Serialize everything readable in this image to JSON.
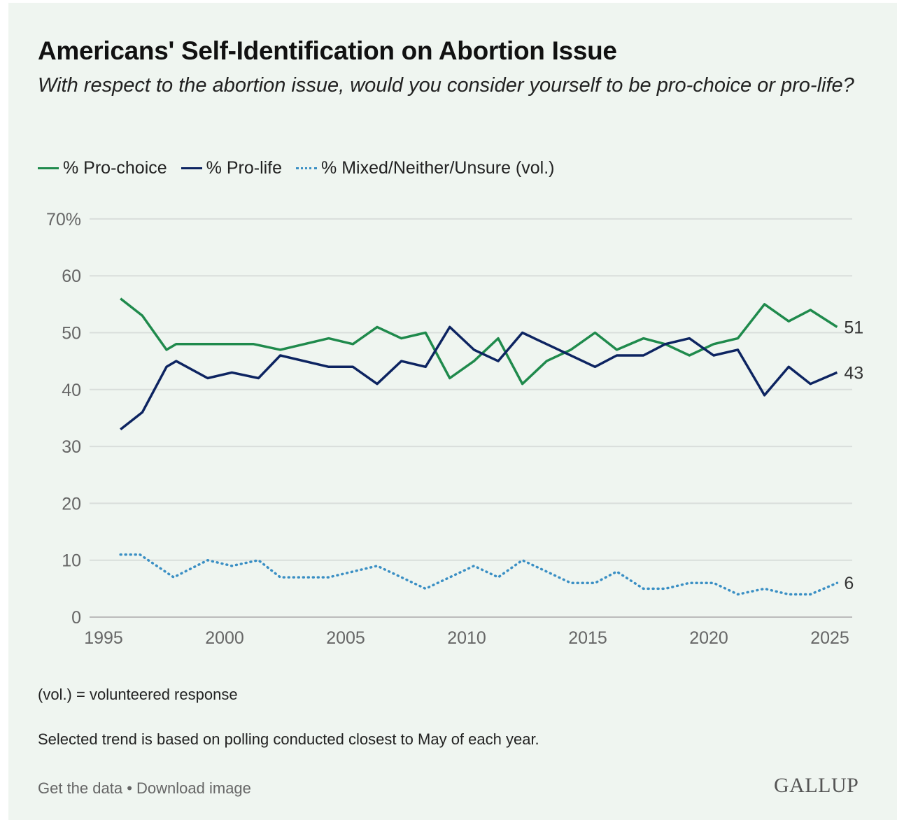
{
  "header": {
    "title": "Americans' Self-Identification on Abortion Issue",
    "subtitle": "With respect to the abortion issue, would you consider yourself to be pro-choice or pro-life?"
  },
  "notes": [
    "(vol.) = volunteered response",
    "Selected trend is based on polling conducted closest to May of each year."
  ],
  "footer": {
    "get_data": "Get the data",
    "separator": " • ",
    "download": "Download image",
    "logo": "GALLUP"
  },
  "colors": {
    "pro_choice": "#1f8a4c",
    "pro_life": "#0d2461",
    "mixed": "#3a8fc4"
  },
  "chart_data": {
    "type": "line",
    "title": "Americans' Self-Identification on Abortion Issue",
    "xlabel": "",
    "ylabel": "",
    "xlim": [
      1995,
      2025.5
    ],
    "ylim": [
      0,
      70
    ],
    "x_ticks": [
      "1995",
      "2000",
      "2005",
      "2010",
      "2015",
      "2020",
      "2025"
    ],
    "y_ticks": [
      "0",
      "10",
      "20",
      "30",
      "40",
      "50",
      "60",
      "70%"
    ],
    "grid": true,
    "legend": "top-left",
    "series": [
      {
        "name": "% Pro-choice",
        "style": "solid",
        "end_label": "51",
        "points": [
          [
            1995.7,
            56
          ],
          [
            1996.6,
            53
          ],
          [
            1997.6,
            47
          ],
          [
            1998.0,
            48
          ],
          [
            1999.4,
            48
          ],
          [
            2001.2,
            48
          ],
          [
            2002.3,
            47
          ],
          [
            2004.3,
            49
          ],
          [
            2005.3,
            48
          ],
          [
            2006.3,
            51
          ],
          [
            2007.3,
            49
          ],
          [
            2008.3,
            50
          ],
          [
            2009.3,
            42
          ],
          [
            2010.3,
            45
          ],
          [
            2011.3,
            49
          ],
          [
            2012.3,
            41
          ],
          [
            2013.3,
            45
          ],
          [
            2014.3,
            47
          ],
          [
            2015.3,
            50
          ],
          [
            2016.2,
            47
          ],
          [
            2017.3,
            49
          ],
          [
            2018.2,
            48
          ],
          [
            2019.2,
            46
          ],
          [
            2020.2,
            48
          ],
          [
            2021.2,
            49
          ],
          [
            2022.3,
            55
          ],
          [
            2023.3,
            52
          ],
          [
            2024.2,
            54
          ],
          [
            2025.3,
            51
          ]
        ]
      },
      {
        "name": "% Pro-life",
        "style": "solid",
        "end_label": "43",
        "points": [
          [
            1995.7,
            33
          ],
          [
            1996.6,
            36
          ],
          [
            1997.6,
            44
          ],
          [
            1998.0,
            45
          ],
          [
            1999.3,
            42
          ],
          [
            2000.3,
            43
          ],
          [
            2001.4,
            42
          ],
          [
            2002.3,
            46
          ],
          [
            2004.3,
            44
          ],
          [
            2005.3,
            44
          ],
          [
            2006.3,
            41
          ],
          [
            2007.3,
            45
          ],
          [
            2008.3,
            44
          ],
          [
            2009.3,
            51
          ],
          [
            2010.3,
            47
          ],
          [
            2011.3,
            45
          ],
          [
            2012.3,
            50
          ],
          [
            2013.3,
            48
          ],
          [
            2015.3,
            44
          ],
          [
            2016.2,
            46
          ],
          [
            2017.3,
            46
          ],
          [
            2018.2,
            48
          ],
          [
            2019.2,
            49
          ],
          [
            2020.2,
            46
          ],
          [
            2021.2,
            47
          ],
          [
            2022.3,
            39
          ],
          [
            2023.3,
            44
          ],
          [
            2024.2,
            41
          ],
          [
            2025.3,
            43
          ]
        ]
      },
      {
        "name": "% Mixed/Neither/Unsure (vol.)",
        "style": "dotted",
        "end_label": "6",
        "points": [
          [
            1995.7,
            11
          ],
          [
            1996.5,
            11
          ],
          [
            1997.9,
            7
          ],
          [
            1999.3,
            10
          ],
          [
            2000.3,
            9
          ],
          [
            2001.4,
            10
          ],
          [
            2002.3,
            7
          ],
          [
            2004.3,
            7
          ],
          [
            2006.3,
            9
          ],
          [
            2008.3,
            5
          ],
          [
            2010.3,
            9
          ],
          [
            2011.3,
            7
          ],
          [
            2012.3,
            10
          ],
          [
            2014.3,
            6
          ],
          [
            2015.3,
            6
          ],
          [
            2016.2,
            8
          ],
          [
            2017.3,
            5
          ],
          [
            2018.2,
            5
          ],
          [
            2019.2,
            6
          ],
          [
            2020.2,
            6
          ],
          [
            2021.2,
            4
          ],
          [
            2022.3,
            5
          ],
          [
            2023.3,
            4
          ],
          [
            2024.2,
            4
          ],
          [
            2025.3,
            6
          ]
        ]
      }
    ]
  }
}
